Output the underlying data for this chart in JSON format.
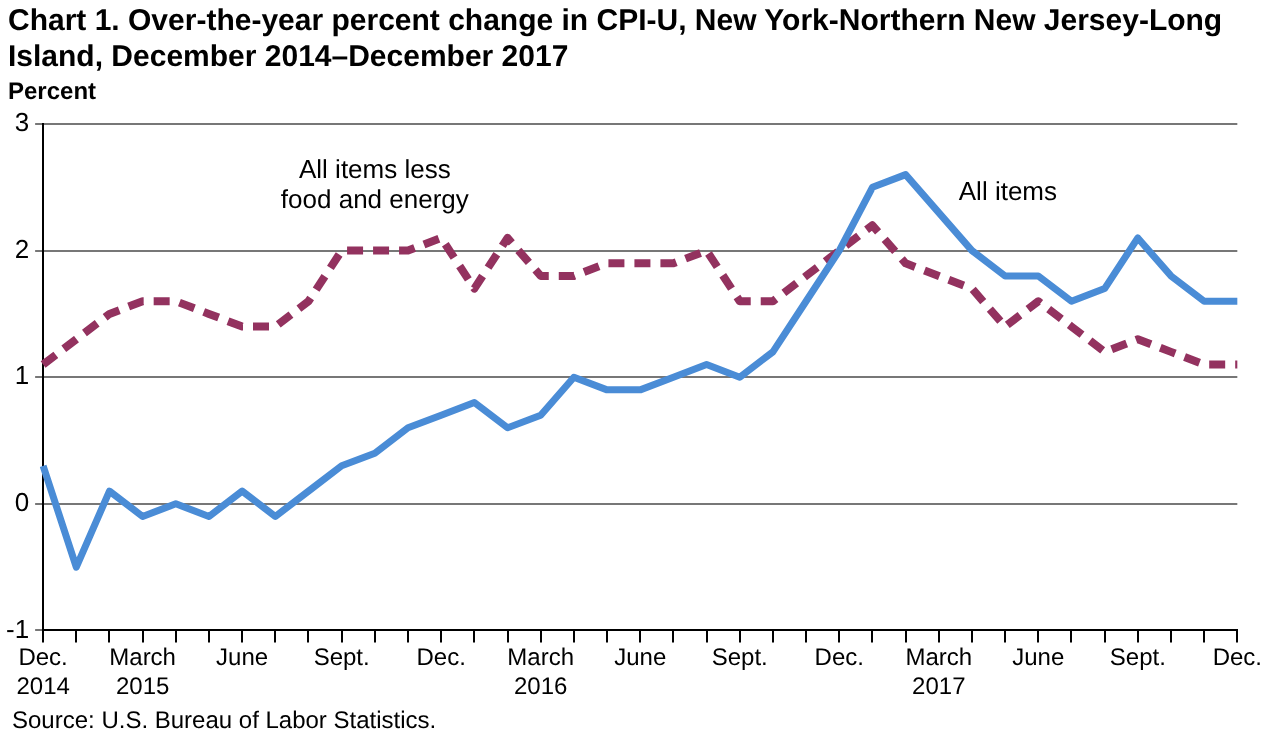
{
  "chart_data": {
    "type": "line",
    "title": "Chart 1. Over-the-year percent change in CPI-U, New York-Northern New Jersey-Long Island, December 2014–December 2017",
    "ylabel": "Percent",
    "categories": [
      "Dec.\n2014",
      null,
      null,
      "March\n2015",
      null,
      null,
      "June",
      null,
      null,
      "Sept.",
      null,
      null,
      "Dec.",
      null,
      null,
      "March\n2016",
      null,
      null,
      "June",
      null,
      null,
      "Sept.",
      null,
      null,
      "Dec.",
      null,
      null,
      "March\n2017",
      null,
      null,
      "June",
      null,
      null,
      "Sept.",
      null,
      null,
      "Dec."
    ],
    "series": [
      {
        "name": "All items",
        "color": "#4a8cd6",
        "line_style": "solid",
        "values": [
          0.3,
          -0.5,
          0.1,
          -0.1,
          0.0,
          -0.1,
          0.1,
          -0.1,
          0.1,
          0.3,
          0.4,
          0.6,
          0.7,
          0.8,
          0.6,
          0.7,
          1.0,
          0.9,
          0.9,
          1.0,
          1.1,
          1.0,
          1.2,
          1.6,
          2.0,
          2.5,
          2.6,
          2.3,
          2.0,
          1.8,
          1.8,
          1.6,
          1.7,
          2.1,
          1.8,
          1.6,
          1.6
        ]
      },
      {
        "name": "All items less food and energy",
        "color": "#93325f",
        "line_style": "dashed",
        "values": [
          1.1,
          1.3,
          1.5,
          1.6,
          1.6,
          1.5,
          1.4,
          1.4,
          1.6,
          2.0,
          2.0,
          2.0,
          2.1,
          1.7,
          2.1,
          1.8,
          1.8,
          1.9,
          1.9,
          1.9,
          2.0,
          1.6,
          1.6,
          1.8,
          2.0,
          2.2,
          1.9,
          1.8,
          1.7,
          1.4,
          1.6,
          1.4,
          1.2,
          1.3,
          1.2,
          1.1,
          1.1
        ]
      }
    ],
    "ylim": [
      -1,
      3
    ],
    "yticks": [
      -1,
      0,
      1,
      2,
      3
    ],
    "grid": "y",
    "marker": "none",
    "legend": false,
    "annotations": [
      "Source: U.S. Bureau of Labor Statistics."
    ]
  }
}
